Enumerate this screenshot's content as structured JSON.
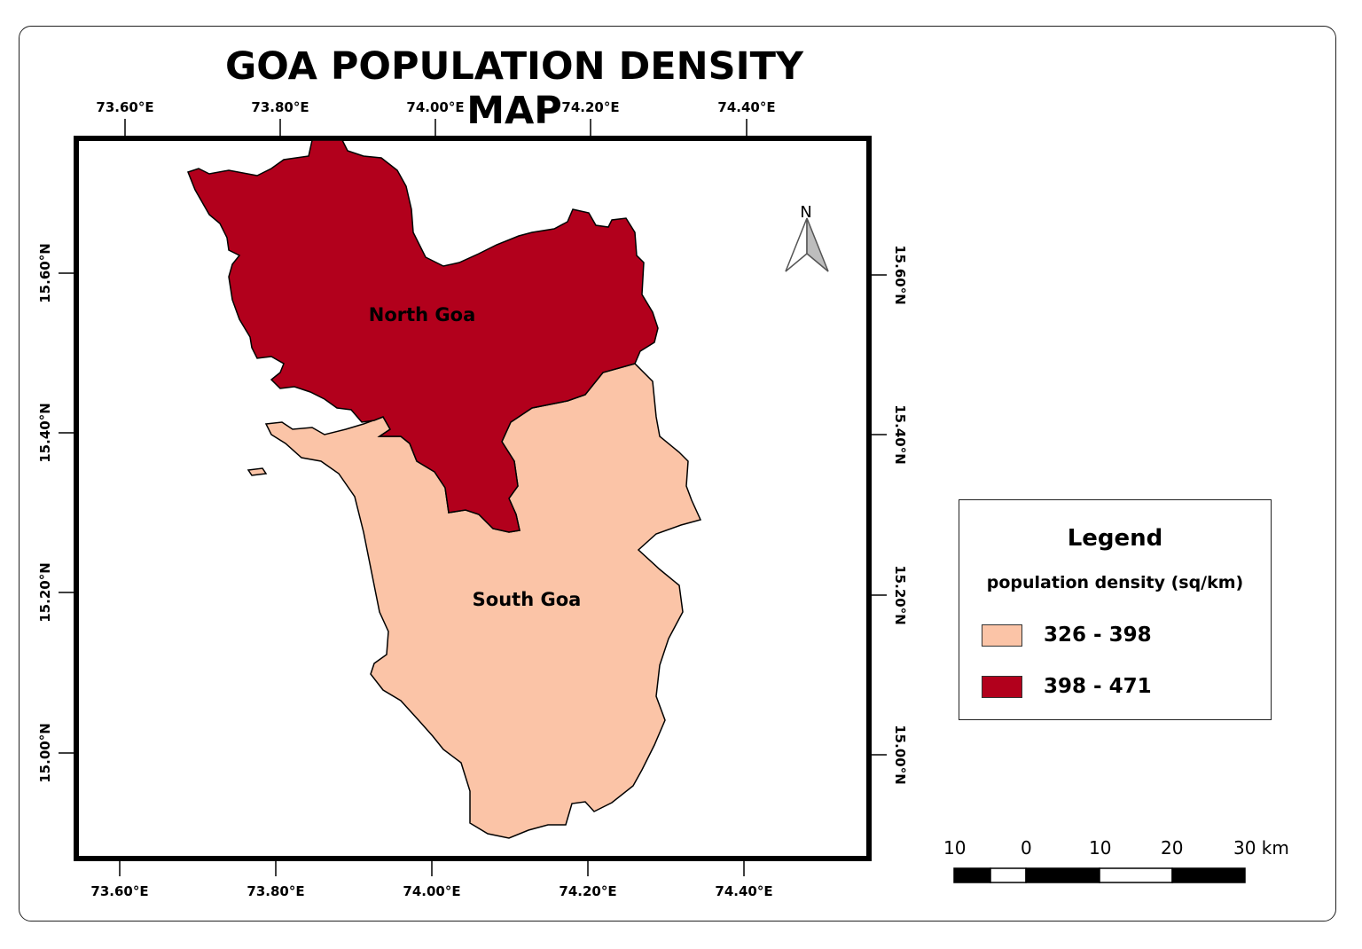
{
  "map": {
    "title": "GOA POPULATION DENSITY MAP",
    "top_longitudes": [
      "73.60°E",
      "73.80°E",
      "74.00°E",
      "74.20°E",
      "74.40°E"
    ],
    "bottom_longitudes": [
      "73.60°E",
      "73.80°E",
      "74.00°E",
      "74.20°E",
      "74.40°E"
    ],
    "left_latitudes": [
      "15.60°N",
      "15.40°N",
      "15.20°N",
      "15.00°N"
    ],
    "right_latitudes": [
      "15.60°N",
      "15.40°N",
      "15.20°N",
      "15.00°N"
    ],
    "regions": [
      {
        "name": "North Goa",
        "class": "398 - 471",
        "color": "#b2001c"
      },
      {
        "name": "South Goa",
        "class": "326 - 398",
        "color": "#fbc4a7"
      }
    ],
    "north_arrow_label": "N"
  },
  "legend": {
    "title": "Legend",
    "subtitle": "population density (sq/km)",
    "items": [
      {
        "label": "326 - 398",
        "color": "#fbc4a7"
      },
      {
        "label": "398 - 471",
        "color": "#b2001c"
      }
    ]
  },
  "scale_bar": {
    "labels": [
      "10",
      "0",
      "10",
      "20",
      "30 km"
    ]
  },
  "colors": {
    "north_goa": "#b2001c",
    "south_goa": "#fbc4a7",
    "border": "#000000"
  }
}
